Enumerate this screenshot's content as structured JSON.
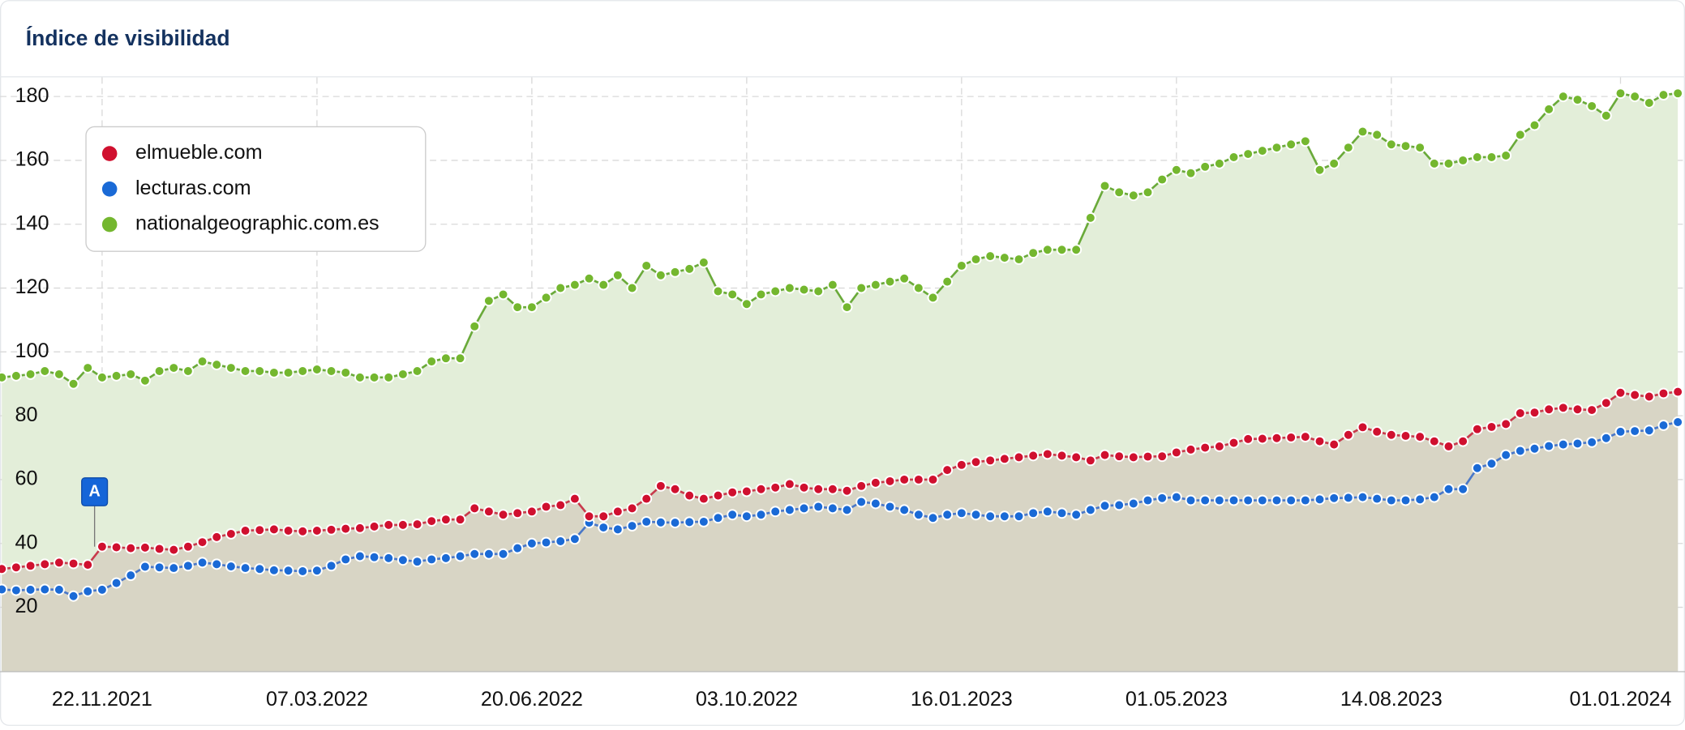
{
  "chart_data": {
    "type": "line",
    "title": "Índice de visibilidad",
    "annotation": "A",
    "categories": [
      null,
      null,
      null,
      null,
      null,
      null,
      null,
      "22.11.2021",
      null,
      null,
      null,
      null,
      null,
      null,
      null,
      null,
      null,
      null,
      null,
      null,
      null,
      null,
      "07.03.2022",
      null,
      null,
      null,
      null,
      null,
      null,
      null,
      null,
      null,
      null,
      null,
      null,
      null,
      null,
      "20.06.2022",
      null,
      null,
      null,
      null,
      null,
      null,
      null,
      null,
      null,
      null,
      null,
      null,
      null,
      null,
      "03.10.2022",
      null,
      null,
      null,
      null,
      null,
      null,
      null,
      null,
      null,
      null,
      null,
      null,
      null,
      null,
      "16.01.2023",
      null,
      null,
      null,
      null,
      null,
      null,
      null,
      null,
      null,
      null,
      null,
      null,
      null,
      null,
      "01.05.2023",
      null,
      null,
      null,
      null,
      null,
      null,
      null,
      null,
      null,
      null,
      null,
      null,
      null,
      null,
      "14.08.2023",
      null,
      null,
      null,
      null,
      null,
      null,
      null,
      null,
      null,
      null,
      null,
      null,
      null,
      null,
      null,
      "01.01.2024",
      null,
      null,
      null,
      null
    ],
    "series": [
      {
        "name": "elmueble.com",
        "color": "#d0102f",
        "line_color": "#c83a4c",
        "fill": "#d8d5c5",
        "values": [
          32,
          32.5,
          33,
          33.5,
          34,
          33.7,
          33.3,
          39,
          38.8,
          38.5,
          38.7,
          38.3,
          38,
          39,
          40.4,
          42,
          43,
          44,
          44.2,
          44.4,
          44,
          43.8,
          44,
          44.3,
          44.6,
          44.8,
          45.3,
          45.8,
          45.8,
          46,
          47,
          47.5,
          47.5,
          51,
          50,
          49,
          49.5,
          50,
          51.5,
          52,
          54,
          48.5,
          48.5,
          50,
          51,
          54,
          58,
          57,
          55,
          54,
          55,
          56,
          56.3,
          57,
          57.5,
          58.6,
          57.5,
          57,
          57,
          56.5,
          58,
          59,
          59.5,
          60,
          60,
          60,
          63,
          64.6,
          65.5,
          66,
          66.5,
          67,
          67.5,
          68,
          67.5,
          67,
          66,
          67.7,
          67.3,
          67,
          67.2,
          67.3,
          68.5,
          69.4,
          70,
          70.4,
          71.5,
          72.7,
          72.8,
          73,
          73.2,
          73.4,
          72,
          71,
          74,
          76.4,
          75,
          74,
          73.7,
          73.4,
          72,
          70.4,
          72,
          75.8,
          76.5,
          77.4,
          80.8,
          81,
          82,
          82.5,
          82,
          81.8,
          84,
          87.2,
          86.5,
          86,
          87,
          87.5
        ]
      },
      {
        "name": "lecturas.com",
        "color": "#1a6ad6",
        "line_color": "#4a78c8",
        "fill": "#bec3bb",
        "values": [
          25.6,
          25.3,
          25.5,
          25.6,
          25.5,
          23.5,
          25,
          25.5,
          27.6,
          30,
          32.7,
          32.5,
          32.3,
          33,
          34,
          33.5,
          32.8,
          32.3,
          32,
          31.6,
          31.5,
          31.3,
          31.5,
          33,
          35,
          36,
          35.7,
          35.4,
          34.8,
          34.3,
          35,
          35.4,
          36,
          36.7,
          36.7,
          36.7,
          38.5,
          40,
          40.3,
          40.7,
          41.4,
          46.5,
          45,
          44.4,
          45.5,
          46.8,
          46.6,
          46.5,
          46.7,
          46.8,
          48,
          49,
          48.5,
          49,
          50,
          50.5,
          51,
          51.5,
          51,
          50.5,
          53,
          52.5,
          51.5,
          50.5,
          49,
          48,
          49,
          49.5,
          49,
          48.5,
          48.5,
          48.5,
          49.5,
          50,
          49.5,
          49,
          50.5,
          51.8,
          52,
          52.5,
          53.5,
          54.2,
          54.5,
          53.5,
          53.5,
          53.5,
          53.5,
          53.5,
          53.5,
          53.5,
          53.5,
          53.5,
          53.8,
          54.2,
          54.3,
          54.5,
          54,
          53.5,
          53.5,
          53.8,
          54.5,
          57,
          57,
          63.6,
          65,
          67.7,
          69,
          69.7,
          70.5,
          71,
          71.3,
          71.7,
          73,
          75,
          75.2,
          75.4,
          77,
          78
        ]
      },
      {
        "name": "nationalgeographic.com.es",
        "color": "#74b72f",
        "line_color": "#6aaa3a",
        "fill": "#e3eed9",
        "values": [
          92,
          92.5,
          93,
          94,
          93,
          90,
          95,
          92,
          92.5,
          93,
          91,
          94,
          95,
          94,
          97,
          96,
          95,
          94,
          94,
          93.5,
          93.5,
          94,
          94.5,
          94,
          93.5,
          92,
          92,
          92,
          93,
          94,
          97,
          98,
          98,
          108,
          116,
          118,
          114,
          114,
          117,
          120,
          121,
          123,
          121,
          124,
          120,
          127,
          124,
          125,
          126,
          128,
          119,
          118,
          115,
          118,
          119,
          120,
          119.5,
          119,
          121,
          114,
          120,
          121,
          122,
          123,
          120,
          117,
          122,
          127,
          129,
          130,
          129.5,
          129,
          131,
          132,
          132,
          132,
          142,
          152,
          150,
          149,
          150,
          154,
          157,
          156,
          158,
          159,
          161,
          162,
          163,
          164,
          165,
          166,
          157,
          159,
          164,
          169,
          168,
          165,
          164.5,
          164,
          159,
          159,
          160,
          161,
          161,
          161.5,
          168,
          171,
          176,
          180,
          179,
          177,
          174,
          181,
          180,
          178,
          180.5,
          181
        ]
      }
    ],
    "ylim": [
      0,
      186
    ],
    "yticks": [
      20,
      40,
      60,
      80,
      100,
      120,
      140,
      160,
      180
    ],
    "grid": true
  }
}
